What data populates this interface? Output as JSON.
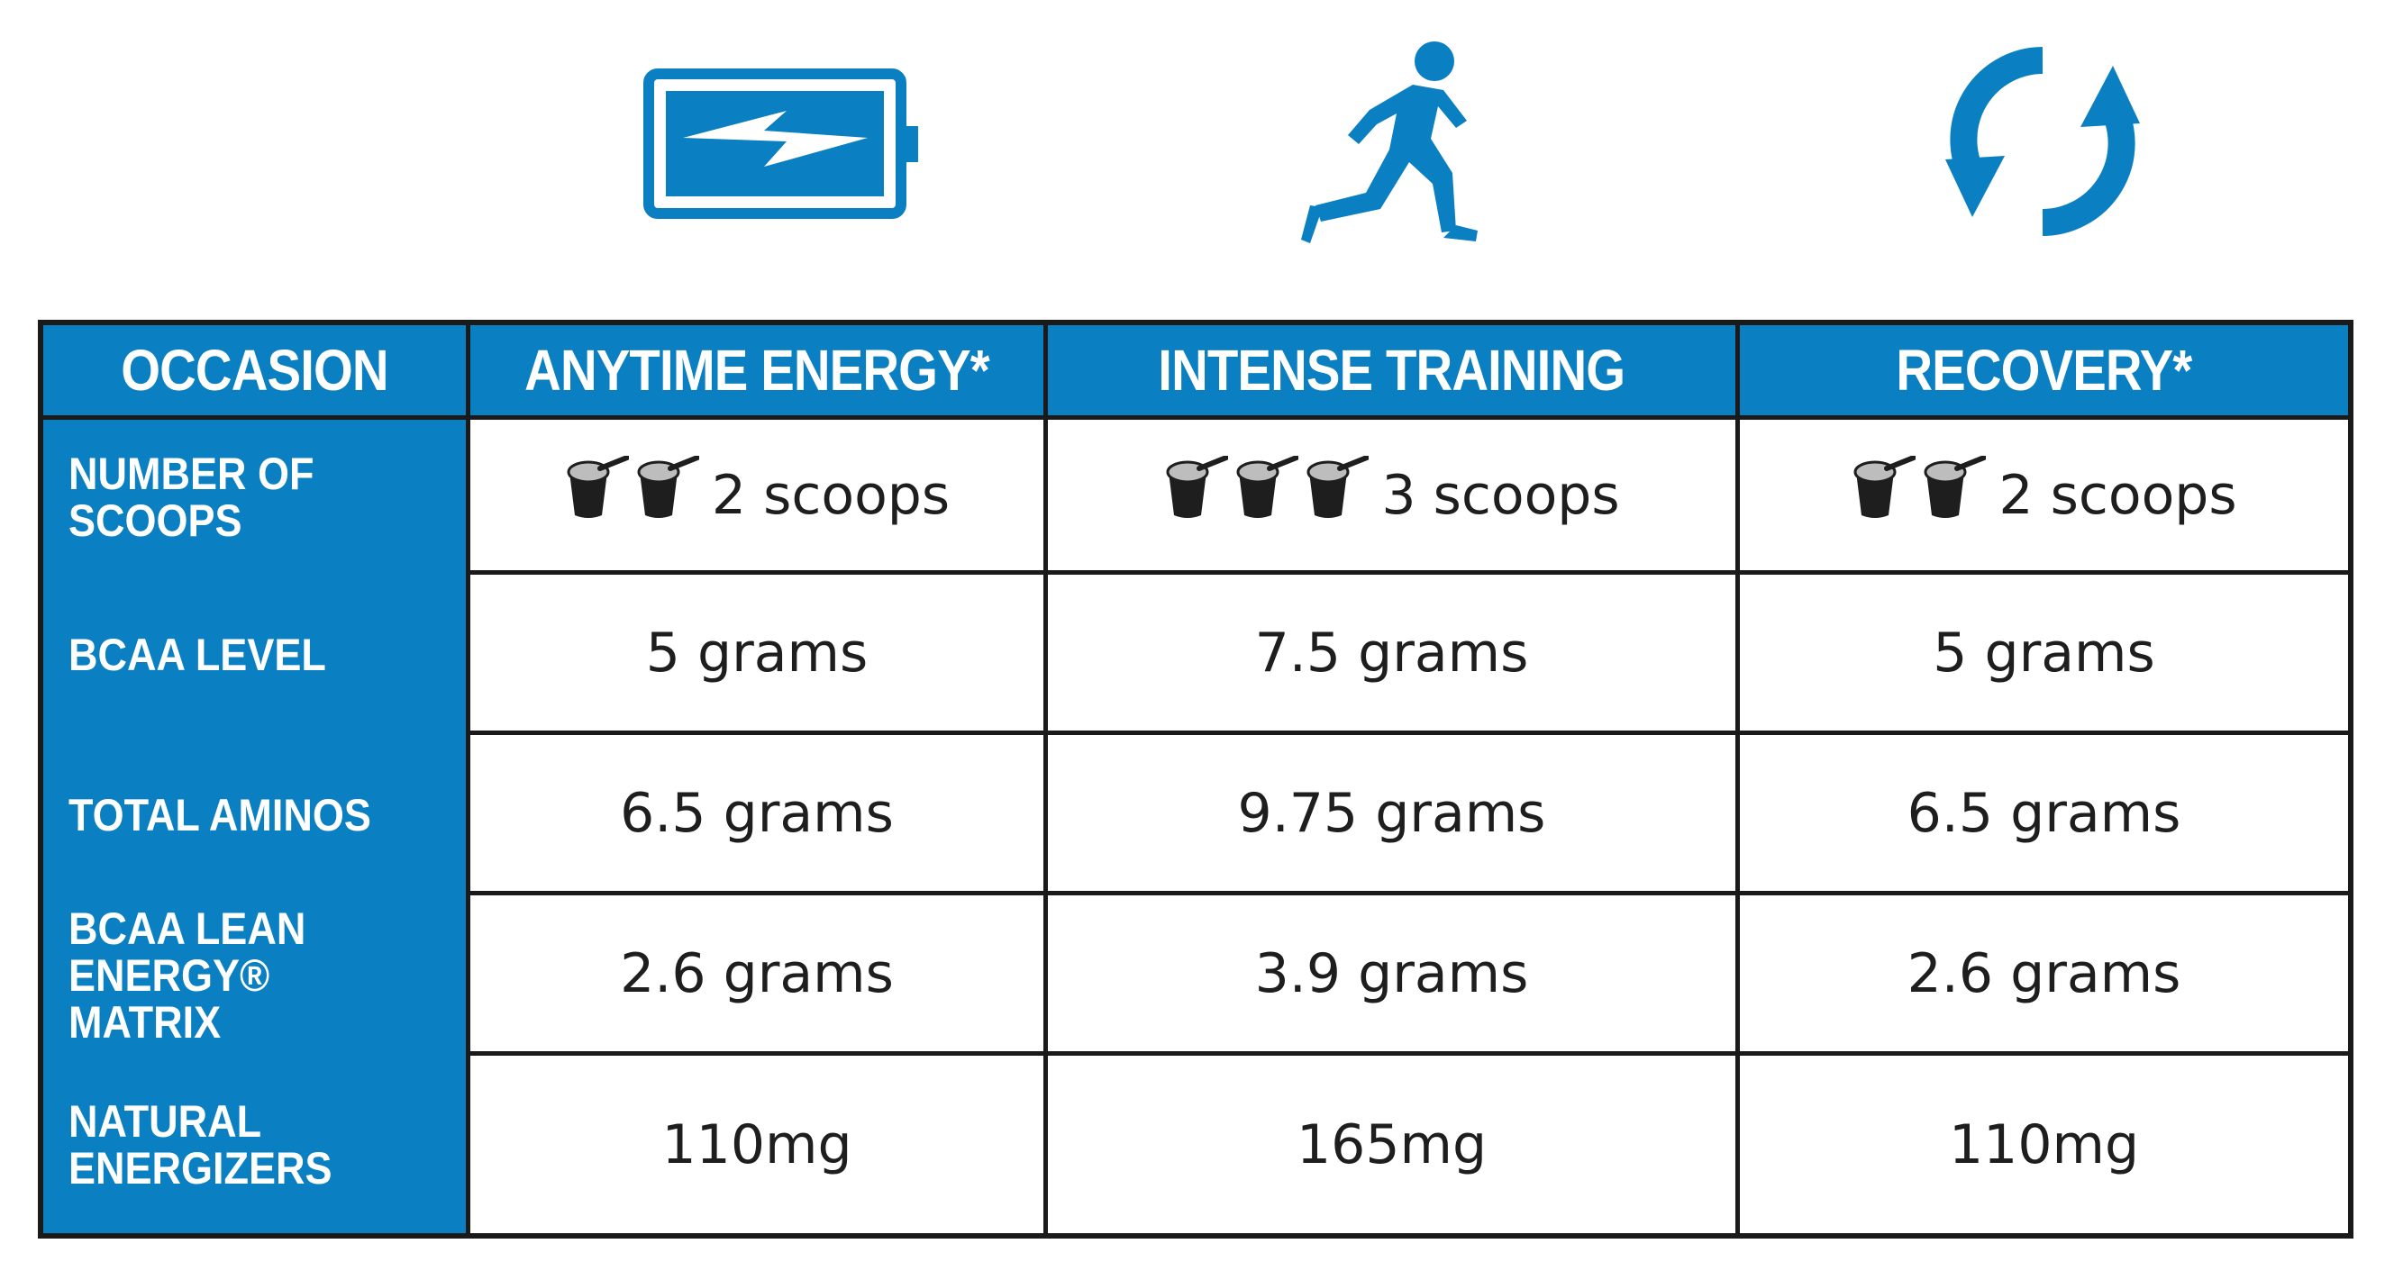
{
  "icons": {
    "col1": "battery-charging-icon",
    "col2": "runner-icon",
    "col3": "recycle-arrows-icon"
  },
  "colors": {
    "brand_blue": "#0a7fc1",
    "text": "#1e1e1e",
    "border": "#1a1a1a"
  },
  "table": {
    "headers": [
      "OCCASION",
      "ANYTIME ENERGY*",
      "INTENSE TRAINING",
      "RECOVERY*"
    ],
    "rows": [
      {
        "label": "NUMBER OF\nSCOOPS",
        "values": [
          "2 scoops",
          "3 scoops",
          "2 scoops"
        ],
        "scoop_counts": [
          2,
          3,
          2
        ]
      },
      {
        "label": "BCAA LEVEL",
        "values": [
          "5 grams",
          "7.5 grams",
          "5 grams"
        ]
      },
      {
        "label": "TOTAL AMINOS",
        "values": [
          "6.5 grams",
          "9.75 grams",
          "6.5 grams"
        ]
      },
      {
        "label": "BCAA LEAN\nENERGY® MATRIX",
        "values": [
          "2.6 grams",
          "3.9 grams",
          "2.6 grams"
        ]
      },
      {
        "label": "NATURAL\nENERGIZERS",
        "values": [
          "110mg",
          "165mg",
          "110mg"
        ]
      }
    ]
  }
}
